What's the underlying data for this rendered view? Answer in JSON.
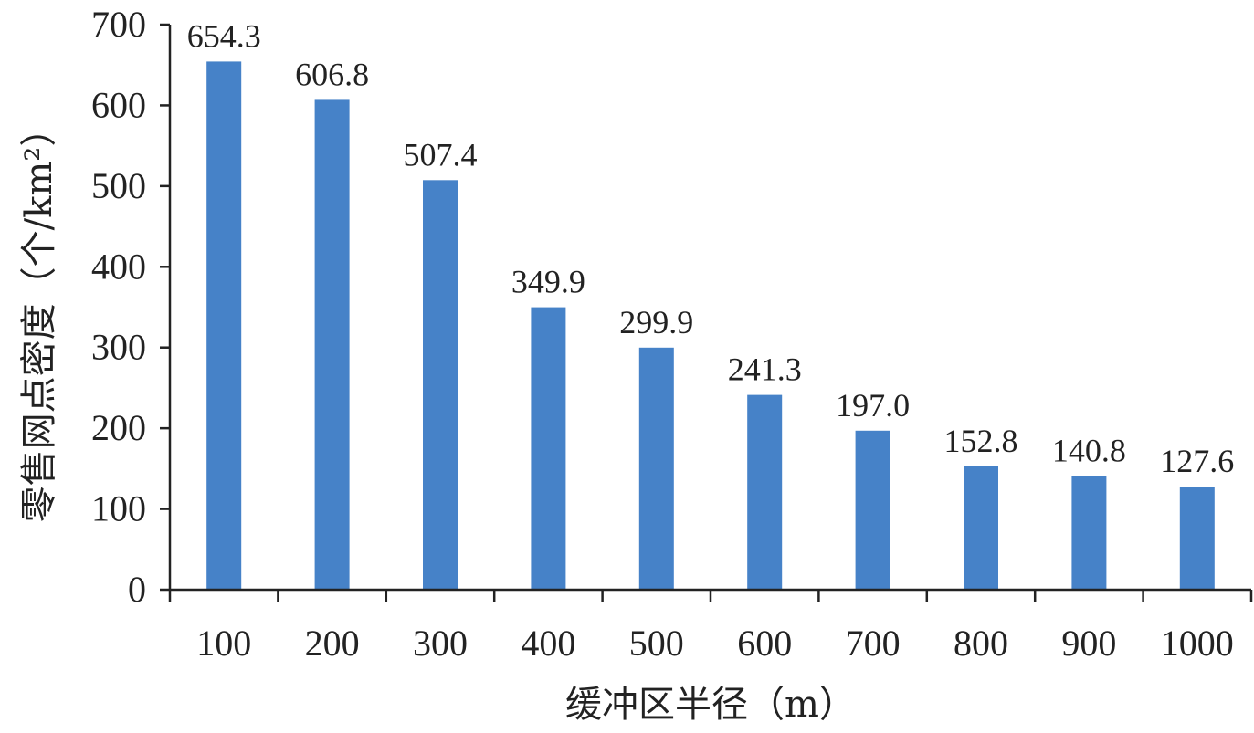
{
  "chart_data": {
    "type": "bar",
    "title": "",
    "xlabel": "缓冲区半径（m）",
    "ylabel": "零售网点密度（个/km²）",
    "categories": [
      "100",
      "200",
      "300",
      "400",
      "500",
      "600",
      "700",
      "800",
      "900",
      "1000"
    ],
    "values": [
      654.3,
      606.8,
      507.4,
      349.9,
      299.9,
      241.3,
      197.0,
      152.8,
      140.8,
      127.6
    ],
    "value_labels": [
      "654.3",
      "606.8",
      "507.4",
      "349.9",
      "299.9",
      "241.3",
      "197.0",
      "152.8",
      "140.8",
      "127.6"
    ],
    "ylim": [
      0,
      700
    ],
    "yticks": [
      "0",
      "100",
      "200",
      "300",
      "400",
      "500",
      "600",
      "700"
    ],
    "bar_color": "#4682C8",
    "grid": false,
    "legend": "none"
  }
}
